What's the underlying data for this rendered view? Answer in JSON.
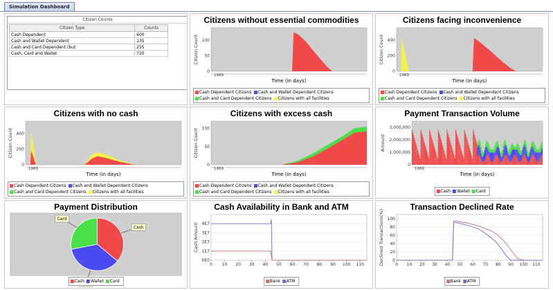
{
  "tab": {
    "label": "Simulation Dashboard"
  },
  "table": {
    "caption": "Citizen Counts",
    "headers": [
      "Citizen Type",
      "Counts"
    ],
    "rows": [
      {
        "type": "Cash Dependent",
        "count": "600"
      },
      {
        "type": "Cash and Wallet Dependent",
        "count": "135"
      },
      {
        "type": "Cash and Card Dependent (but",
        "count": "255"
      },
      {
        "type": "Cash, Card and Wallet",
        "count": "720"
      }
    ]
  },
  "legends": {
    "citizens": [
      {
        "label": "Cash Dependent Citizens",
        "color": "#f24a4a"
      },
      {
        "label": "Cash and Wallet Dependent Citizens",
        "color": "#4a4af2"
      },
      {
        "label": "Cash and Card Dependent Citizens",
        "color": "#4ae04a"
      },
      {
        "label": "Citizens with all facilities",
        "color": "#f2f24a"
      }
    ],
    "payment": [
      {
        "label": "Cash",
        "color": "#f24a4a"
      },
      {
        "label": "Wallet",
        "color": "#4a4af2"
      },
      {
        "label": "Card",
        "color": "#4ae04a"
      }
    ],
    "bank_atm": [
      {
        "label": "Bank",
        "color": "#c86e6e"
      },
      {
        "label": "ATM",
        "color": "#6e6ec8"
      }
    ]
  },
  "chart_data": [
    {
      "id": "essential",
      "type": "area",
      "title": "Citizens without essential commodities",
      "xlabel": "Time (in days)",
      "ylabel": "Citizen Count",
      "y_ticks": [
        "0",
        "50",
        "100"
      ],
      "x_tick": "1969",
      "ylim": [
        0,
        140
      ],
      "series": [
        {
          "name": "Cash Dependent Citizens",
          "points": [
            [
              0,
              0
            ],
            [
              0.52,
              0
            ],
            [
              0.53,
              125
            ],
            [
              0.56,
              118
            ],
            [
              0.6,
              100
            ],
            [
              0.65,
              70
            ],
            [
              0.7,
              40
            ],
            [
              0.75,
              12
            ],
            [
              0.78,
              0
            ],
            [
              1,
              0
            ]
          ]
        }
      ]
    },
    {
      "id": "inconvenience",
      "type": "area",
      "title": "Citizens facing inconvenience",
      "xlabel": "Time (in days)",
      "ylabel": "Citizen Count",
      "y_ticks": [
        "0",
        "200",
        "400"
      ],
      "x_tick": "1969",
      "ylim": [
        0,
        560
      ],
      "series": [
        {
          "name": "Cash Dependent Citizens",
          "points": [
            [
              0,
              0
            ],
            [
              0.03,
              0
            ],
            [
              0.035,
              120
            ],
            [
              0.06,
              80
            ],
            [
              0.08,
              0
            ],
            [
              0.52,
              0
            ],
            [
              0.53,
              430
            ],
            [
              0.58,
              360
            ],
            [
              0.65,
              250
            ],
            [
              0.72,
              130
            ],
            [
              0.78,
              40
            ],
            [
              0.82,
              0
            ],
            [
              1,
              0
            ]
          ]
        },
        {
          "name": "Citizens with all facilities",
          "points": [
            [
              0,
              0
            ],
            [
              0.03,
              0
            ],
            [
              0.035,
              440
            ],
            [
              0.05,
              300
            ],
            [
              0.07,
              120
            ],
            [
              0.085,
              0
            ],
            [
              1,
              0
            ]
          ]
        }
      ]
    },
    {
      "id": "nocash",
      "type": "area",
      "title": "Citizens with no cash",
      "xlabel": "Time (in days)",
      "ylabel": "Citizen Count",
      "y_ticks": [
        "0",
        "200",
        "400"
      ],
      "x_tick": "1969",
      "ylim": [
        0,
        560
      ],
      "series": [
        {
          "name": "Citizens with all facilities",
          "points": [
            [
              0,
              0
            ],
            [
              0.03,
              0
            ],
            [
              0.035,
              440
            ],
            [
              0.05,
              260
            ],
            [
              0.06,
              100
            ],
            [
              0.07,
              0
            ],
            [
              0.38,
              0
            ],
            [
              0.42,
              120
            ],
            [
              0.46,
              160
            ],
            [
              0.52,
              130
            ],
            [
              0.6,
              60
            ],
            [
              0.68,
              15
            ],
            [
              0.72,
              0
            ],
            [
              1,
              0
            ]
          ]
        },
        {
          "name": "Cash Dependent Citizens",
          "points": [
            [
              0,
              0
            ],
            [
              0.03,
              0
            ],
            [
              0.035,
              180
            ],
            [
              0.05,
              100
            ],
            [
              0.065,
              0
            ],
            [
              0.38,
              0
            ],
            [
              0.42,
              70
            ],
            [
              0.46,
              110
            ],
            [
              0.52,
              85
            ],
            [
              0.6,
              40
            ],
            [
              0.68,
              8
            ],
            [
              0.72,
              0
            ],
            [
              1,
              0
            ]
          ]
        }
      ]
    },
    {
      "id": "excess",
      "type": "area",
      "title": "Citizens with excess cash",
      "xlabel": "Time (in days)",
      "ylabel": "Citizen Count",
      "y_ticks": [
        "0",
        "50",
        "100"
      ],
      "x_tick": "1969",
      "ylim": [
        0,
        120
      ],
      "series": [
        {
          "name": "Cash and Card Dependent Citizens",
          "points": [
            [
              0,
              0
            ],
            [
              0.45,
              0
            ],
            [
              0.55,
              10
            ],
            [
              0.65,
              30
            ],
            [
              0.75,
              55
            ],
            [
              0.85,
              80
            ],
            [
              0.92,
              100
            ],
            [
              1,
              105
            ]
          ]
        },
        {
          "name": "Cash Dependent Citizens",
          "points": [
            [
              0,
              0
            ],
            [
              0.45,
              0
            ],
            [
              0.55,
              6
            ],
            [
              0.65,
              22
            ],
            [
              0.75,
              45
            ],
            [
              0.85,
              70
            ],
            [
              0.92,
              88
            ],
            [
              1,
              92
            ]
          ]
        }
      ]
    },
    {
      "id": "volume",
      "type": "bar",
      "title": "Payment Transaction Volume",
      "xlabel": "Time (in days)",
      "ylabel": "Amount",
      "y_ticks": [
        "0",
        "1,000,000",
        "2,000,000",
        "3,000,000"
      ],
      "x_tick": "1969",
      "ylim": [
        0,
        3500000
      ]
    },
    {
      "id": "distribution",
      "type": "pie",
      "title": "Payment Distribution",
      "slices": [
        {
          "label": "Cash",
          "value": 36,
          "color": "#f24a4a"
        },
        {
          "label": "Wallet",
          "value": 36,
          "color": "#4a4af2"
        },
        {
          "label": "Card",
          "value": 28,
          "color": "#4ae04a"
        }
      ]
    },
    {
      "id": "cashavail",
      "type": "line",
      "title": "Cash Availability in Bank and ATM",
      "xlabel": "",
      "ylabel": "Cash Amount",
      "y_ticks": [
        "0E0",
        "1E7",
        "2E7",
        "3E7",
        "4E7"
      ],
      "x_ticks": [
        "0",
        "10",
        "20",
        "30",
        "40",
        "50",
        "60",
        "70",
        "80",
        "90",
        "100",
        "110"
      ],
      "ylim": [
        0,
        50000000
      ],
      "xlim": [
        0,
        115
      ],
      "series": [
        {
          "name": "ATM",
          "points": [
            [
              0,
              40000000
            ],
            [
              44,
              40000000
            ],
            [
              44.5,
              45000000
            ],
            [
              45,
              0
            ],
            [
              115,
              0
            ]
          ]
        },
        {
          "name": "Bank",
          "points": [
            [
              0,
              10000000
            ],
            [
              44,
              10000000
            ],
            [
              45,
              0
            ],
            [
              115,
              0
            ]
          ]
        }
      ]
    },
    {
      "id": "declined",
      "type": "line",
      "title": "Transaction Declined Rate",
      "xlabel": "",
      "ylabel": "Declined Transactions(%)",
      "y_ticks": [
        "0",
        "20",
        "40",
        "60",
        "80",
        "100"
      ],
      "x_ticks": [
        "0",
        "10",
        "20",
        "30",
        "40",
        "50",
        "60",
        "70",
        "80",
        "90",
        "100",
        "110"
      ],
      "ylim": [
        0,
        110
      ],
      "xlim": [
        0,
        115
      ],
      "series": [
        {
          "name": "Bank",
          "points": [
            [
              0,
              0
            ],
            [
              44,
              0
            ],
            [
              45,
              95
            ],
            [
              55,
              90
            ],
            [
              65,
              82
            ],
            [
              75,
              70
            ],
            [
              80,
              60
            ],
            [
              85,
              45
            ],
            [
              90,
              25
            ],
            [
              95,
              5
            ],
            [
              100,
              0
            ],
            [
              115,
              0
            ]
          ]
        },
        {
          "name": "ATM",
          "points": [
            [
              0,
              0
            ],
            [
              44,
              0
            ],
            [
              45,
              92
            ],
            [
              55,
              85
            ],
            [
              65,
              75
            ],
            [
              72,
              60
            ],
            [
              78,
              45
            ],
            [
              82,
              30
            ],
            [
              86,
              12
            ],
            [
              90,
              0
            ],
            [
              115,
              0
            ]
          ]
        }
      ]
    }
  ]
}
